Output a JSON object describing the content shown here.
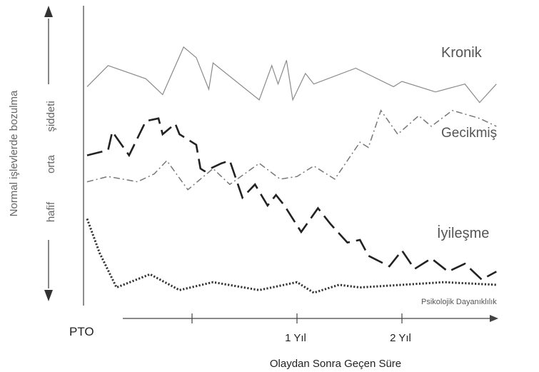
{
  "chart_data": {
    "type": "line",
    "title": "",
    "xlabel": "Olaydan Sonra Geçen Süre",
    "ylabel": "Normal işlevlerde bozulma",
    "y_levels": [
      "hafif",
      "orta",
      "şiddeti"
    ],
    "origin_label": "PTO",
    "x_ticks": [
      {
        "x": 0.5,
        "label": ""
      },
      {
        "x": 1.0,
        "label": "1 Yıl"
      },
      {
        "x": 1.5,
        "label": "2 Yıl"
      }
    ],
    "xlim": [
      -0.2,
      1.95
    ],
    "ylim": [
      0,
      100
    ],
    "grid": false,
    "legend": "inline labels",
    "series": [
      {
        "name": "Kronik",
        "style": "solid",
        "color": "#8a8a8a",
        "points": [
          [
            0.0,
            78
          ],
          [
            0.1,
            86
          ],
          [
            0.28,
            81
          ],
          [
            0.36,
            75
          ],
          [
            0.46,
            93
          ],
          [
            0.52,
            89
          ],
          [
            0.58,
            77
          ],
          [
            0.6,
            87
          ],
          [
            0.82,
            73
          ],
          [
            0.88,
            86
          ],
          [
            0.91,
            79
          ],
          [
            0.95,
            88
          ],
          [
            0.98,
            73
          ],
          [
            1.04,
            83
          ],
          [
            1.08,
            79
          ],
          [
            1.28,
            85
          ],
          [
            1.46,
            78
          ],
          [
            1.5,
            80
          ],
          [
            1.66,
            76
          ],
          [
            1.8,
            79
          ],
          [
            1.87,
            72
          ],
          [
            1.95,
            79
          ]
        ]
      },
      {
        "name": "Gecikmiş",
        "style": "dash-dot",
        "color": "#777777",
        "points": [
          [
            0.0,
            42
          ],
          [
            0.1,
            44
          ],
          [
            0.24,
            42
          ],
          [
            0.32,
            45
          ],
          [
            0.38,
            50
          ],
          [
            0.48,
            39
          ],
          [
            0.6,
            47
          ],
          [
            0.68,
            41
          ],
          [
            0.82,
            49
          ],
          [
            0.92,
            43
          ],
          [
            1.0,
            44
          ],
          [
            1.08,
            48
          ],
          [
            1.18,
            43
          ],
          [
            1.3,
            57
          ],
          [
            1.34,
            55
          ],
          [
            1.4,
            69
          ],
          [
            1.48,
            60
          ],
          [
            1.58,
            67
          ],
          [
            1.64,
            63
          ],
          [
            1.74,
            69
          ],
          [
            1.87,
            66
          ],
          [
            1.95,
            63
          ]
        ]
      },
      {
        "name": "İyileşme",
        "style": "long-dash",
        "color": "#222222",
        "points": [
          [
            0.0,
            52
          ],
          [
            0.1,
            54
          ],
          [
            0.12,
            61
          ],
          [
            0.2,
            52
          ],
          [
            0.28,
            65
          ],
          [
            0.34,
            66
          ],
          [
            0.36,
            60
          ],
          [
            0.42,
            64
          ],
          [
            0.44,
            60
          ],
          [
            0.52,
            56
          ],
          [
            0.54,
            47
          ],
          [
            0.56,
            46
          ],
          [
            0.64,
            49
          ],
          [
            0.68,
            50
          ],
          [
            0.74,
            36
          ],
          [
            0.8,
            41
          ],
          [
            0.86,
            33
          ],
          [
            0.9,
            37
          ],
          [
            0.94,
            33
          ],
          [
            1.02,
            23
          ],
          [
            1.1,
            32
          ],
          [
            1.16,
            26
          ],
          [
            1.24,
            19
          ],
          [
            1.3,
            20
          ],
          [
            1.34,
            14
          ],
          [
            1.44,
            10
          ],
          [
            1.5,
            16
          ],
          [
            1.56,
            9
          ],
          [
            1.64,
            13
          ],
          [
            1.72,
            8
          ],
          [
            1.8,
            11
          ],
          [
            1.88,
            5
          ],
          [
            1.95,
            8
          ]
        ]
      },
      {
        "name": "Psikolojik Dayanıklılık",
        "style": "dotted",
        "color": "#333333",
        "points": [
          [
            0.0,
            28
          ],
          [
            0.06,
            15
          ],
          [
            0.14,
            2
          ],
          [
            0.3,
            7
          ],
          [
            0.44,
            1
          ],
          [
            0.6,
            4
          ],
          [
            0.82,
            1
          ],
          [
            1.0,
            4
          ],
          [
            1.08,
            0
          ],
          [
            1.2,
            3
          ],
          [
            1.3,
            2
          ],
          [
            1.5,
            3
          ],
          [
            1.7,
            4
          ],
          [
            1.95,
            3
          ]
        ]
      }
    ]
  }
}
